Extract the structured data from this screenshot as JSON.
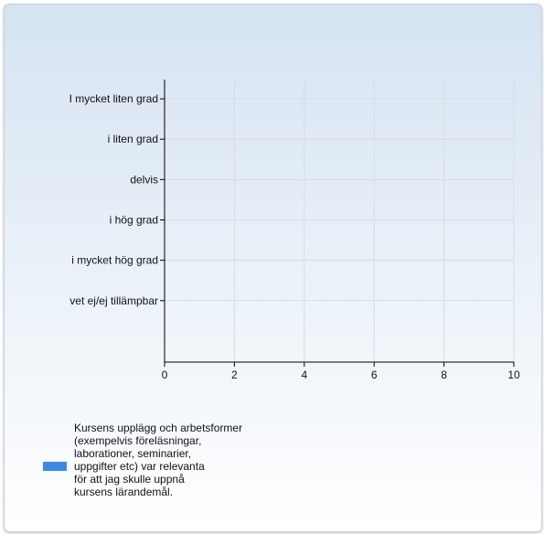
{
  "chart_data": {
    "type": "bar",
    "orientation": "horizontal",
    "categories": [
      "I mycket liten grad",
      "i liten grad",
      "delvis",
      "i hög grad",
      "i mycket hög grad",
      "vet ej/ej tillämpbar"
    ],
    "series": [
      {
        "name": "Kursens upplägg och arbetsformer\n(exempelvis föreläsningar,\nlaborationer, seminarier,\nuppgifter etc) var relevanta\nför att jag skulle uppnå\nkursens lärandemål.",
        "values": [
          0,
          0,
          0,
          0,
          0,
          0
        ],
        "color": "#3c8ae6"
      }
    ],
    "xlim": [
      0,
      10
    ],
    "xticks": [
      0,
      2,
      4,
      6,
      8,
      10
    ],
    "grid": true,
    "legend_position": "bottom"
  }
}
